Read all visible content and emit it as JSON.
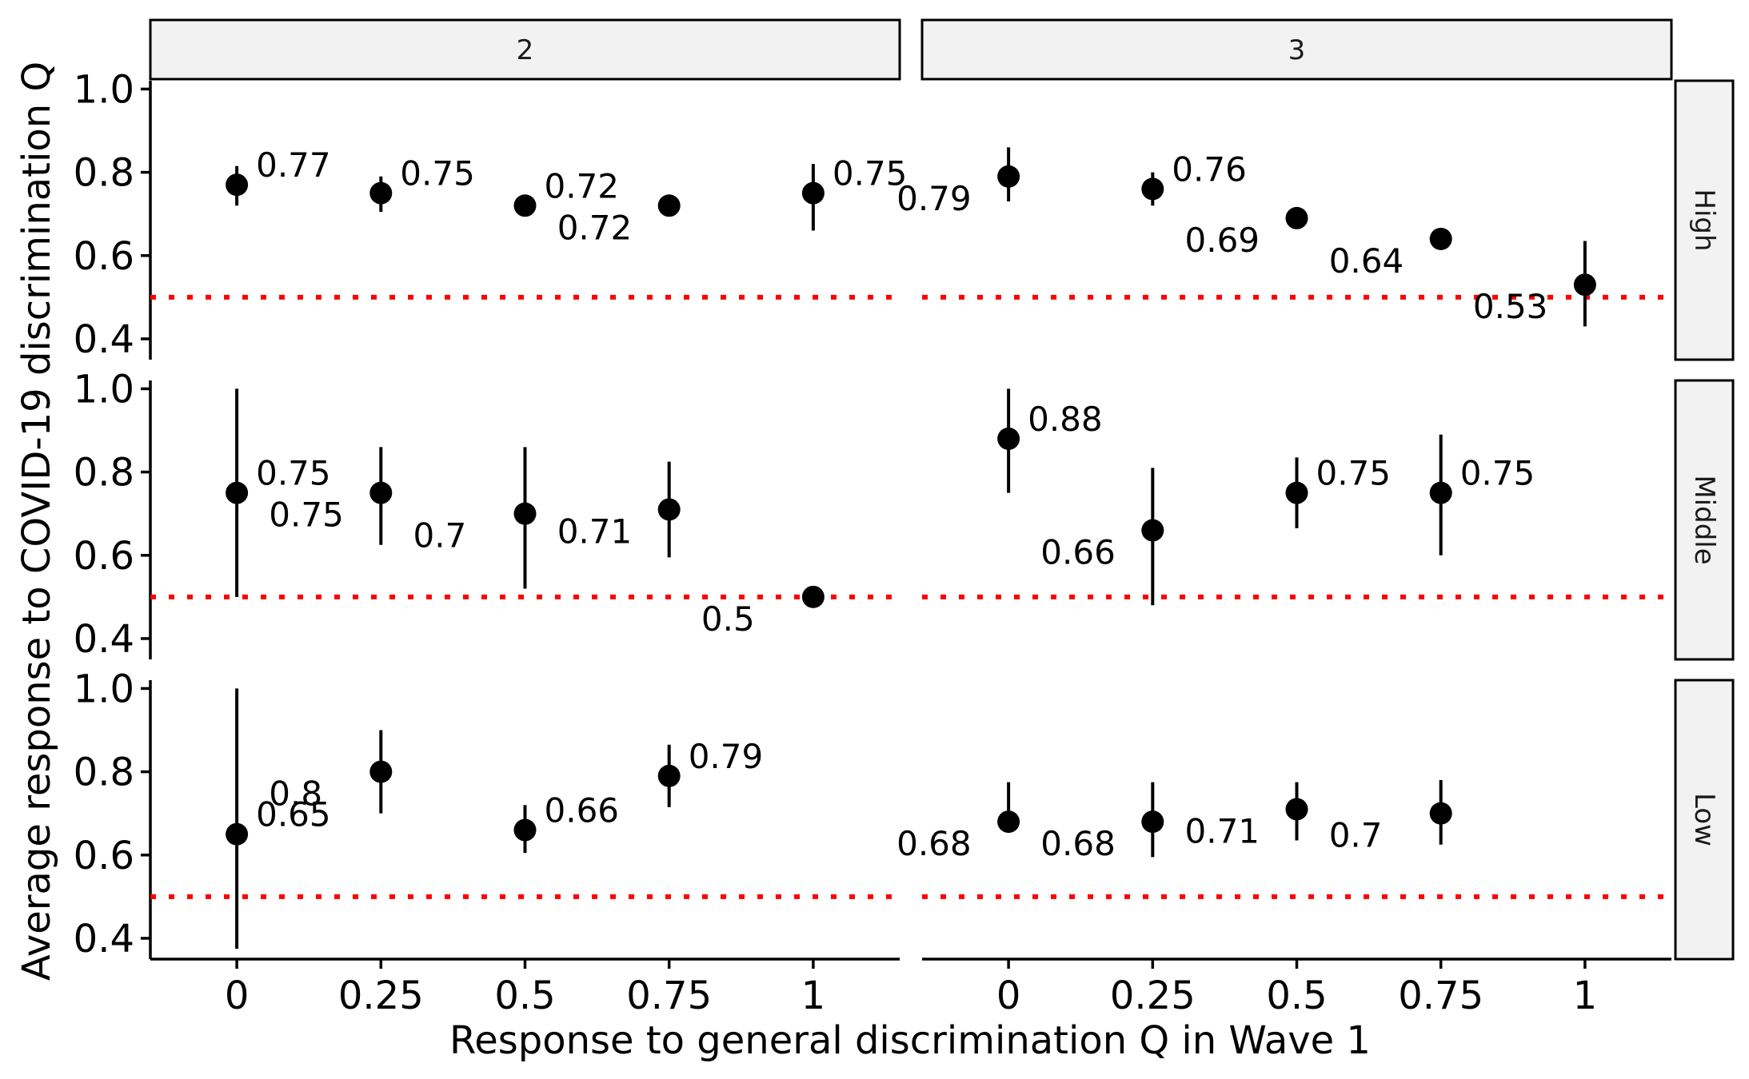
{
  "chart_data": {
    "type": "scatter",
    "xlabel": "Response to general discrimination Q in Wave 1",
    "ylabel": "Average response to COVID-19 discrimination Q",
    "column_facets": [
      "2",
      "3"
    ],
    "row_facets": [
      "High",
      "Middle",
      "Low"
    ],
    "x_ticks": [
      "0",
      "0.25",
      "0.5",
      "0.75",
      "1"
    ],
    "x_values": [
      0,
      0.25,
      0.5,
      0.75,
      1
    ],
    "y_ticks": [
      "0.4",
      "0.6",
      "0.8",
      "1.0"
    ],
    "y_tick_values": [
      0.4,
      0.6,
      0.8,
      1.0
    ],
    "ylim": [
      0.35,
      1.02
    ],
    "xlim": [
      -0.15,
      1.15
    ],
    "reference_line": {
      "y": 0.5,
      "style": "dotted",
      "color": "#ff0000"
    },
    "point_color": "#000000",
    "panels": [
      {
        "column": "2",
        "row": "High",
        "points": [
          {
            "x": 0,
            "y": 0.77,
            "ymin": 0.72,
            "ymax": 0.815,
            "label": "0.77",
            "pos": "ur"
          },
          {
            "x": 0.25,
            "y": 0.75,
            "ymin": 0.705,
            "ymax": 0.79,
            "label": "0.75",
            "pos": "ur"
          },
          {
            "x": 0.5,
            "y": 0.72,
            "ymin": 0.72,
            "ymax": 0.72,
            "label": "0.72",
            "pos": "ur"
          },
          {
            "x": 0.75,
            "y": 0.72,
            "ymin": 0.695,
            "ymax": 0.74,
            "label": "0.72",
            "pos": "ll"
          },
          {
            "x": 1,
            "y": 0.75,
            "ymin": 0.66,
            "ymax": 0.82,
            "label": "0.75",
            "pos": "ur"
          }
        ]
      },
      {
        "column": "3",
        "row": "High",
        "points": [
          {
            "x": 0,
            "y": 0.79,
            "ymin": 0.73,
            "ymax": 0.86,
            "label": "0.79",
            "pos": "ll"
          },
          {
            "x": 0.25,
            "y": 0.76,
            "ymin": 0.72,
            "ymax": 0.8,
            "label": "0.76",
            "pos": "ur"
          },
          {
            "x": 0.5,
            "y": 0.69,
            "ymin": 0.69,
            "ymax": 0.69,
            "label": "0.69",
            "pos": "ll"
          },
          {
            "x": 0.75,
            "y": 0.64,
            "ymin": 0.64,
            "ymax": 0.64,
            "label": "0.64",
            "pos": "ll"
          },
          {
            "x": 1,
            "y": 0.53,
            "ymin": 0.43,
            "ymax": 0.635,
            "label": "0.53",
            "pos": "ll"
          }
        ]
      },
      {
        "column": "2",
        "row": "Middle",
        "points": [
          {
            "x": 0,
            "y": 0.75,
            "ymin": 0.5,
            "ymax": 1.0,
            "label": "0.75",
            "pos": "ur"
          },
          {
            "x": 0.25,
            "y": 0.75,
            "ymin": 0.625,
            "ymax": 0.86,
            "label": "0.75",
            "pos": "ll"
          },
          {
            "x": 0.5,
            "y": 0.7,
            "ymin": 0.52,
            "ymax": 0.86,
            "label": "0.7",
            "pos": "ll"
          },
          {
            "x": 0.75,
            "y": 0.71,
            "ymin": 0.595,
            "ymax": 0.825,
            "label": "0.71",
            "pos": "ll"
          },
          {
            "x": 1,
            "y": 0.5,
            "ymin": 0.5,
            "ymax": 0.5,
            "label": "0.5",
            "pos": "ll"
          }
        ]
      },
      {
        "column": "3",
        "row": "Middle",
        "points": [
          {
            "x": 0,
            "y": 0.88,
            "ymin": 0.75,
            "ymax": 1.0,
            "label": "0.88",
            "pos": "ur"
          },
          {
            "x": 0.25,
            "y": 0.66,
            "ymin": 0.48,
            "ymax": 0.81,
            "label": "0.66",
            "pos": "ll"
          },
          {
            "x": 0.5,
            "y": 0.75,
            "ymin": 0.665,
            "ymax": 0.835,
            "label": "0.75",
            "pos": "ur"
          },
          {
            "x": 0.75,
            "y": 0.75,
            "ymin": 0.6,
            "ymax": 0.89,
            "label": "0.75",
            "pos": "ur"
          }
        ]
      },
      {
        "column": "2",
        "row": "Low",
        "points": [
          {
            "x": 0,
            "y": 0.65,
            "ymin": 0.375,
            "ymax": 1.0,
            "label": "0.65",
            "pos": "ur"
          },
          {
            "x": 0.25,
            "y": 0.8,
            "ymin": 0.7,
            "ymax": 0.9,
            "label": "0.8",
            "pos": "ll"
          },
          {
            "x": 0.5,
            "y": 0.66,
            "ymin": 0.605,
            "ymax": 0.72,
            "label": "0.66",
            "pos": "ur"
          },
          {
            "x": 0.75,
            "y": 0.79,
            "ymin": 0.715,
            "ymax": 0.865,
            "label": "0.79",
            "pos": "ur"
          }
        ]
      },
      {
        "column": "3",
        "row": "Low",
        "points": [
          {
            "x": 0,
            "y": 0.68,
            "ymin": 0.68,
            "ymax": 0.775,
            "label": "0.68",
            "pos": "ll"
          },
          {
            "x": 0.25,
            "y": 0.68,
            "ymin": 0.595,
            "ymax": 0.775,
            "label": "0.68",
            "pos": "ll"
          },
          {
            "x": 0.5,
            "y": 0.71,
            "ymin": 0.635,
            "ymax": 0.775,
            "label": "0.71",
            "pos": "ll"
          },
          {
            "x": 0.75,
            "y": 0.7,
            "ymin": 0.625,
            "ymax": 0.78,
            "label": "0.7",
            "pos": "ll"
          }
        ]
      }
    ]
  }
}
